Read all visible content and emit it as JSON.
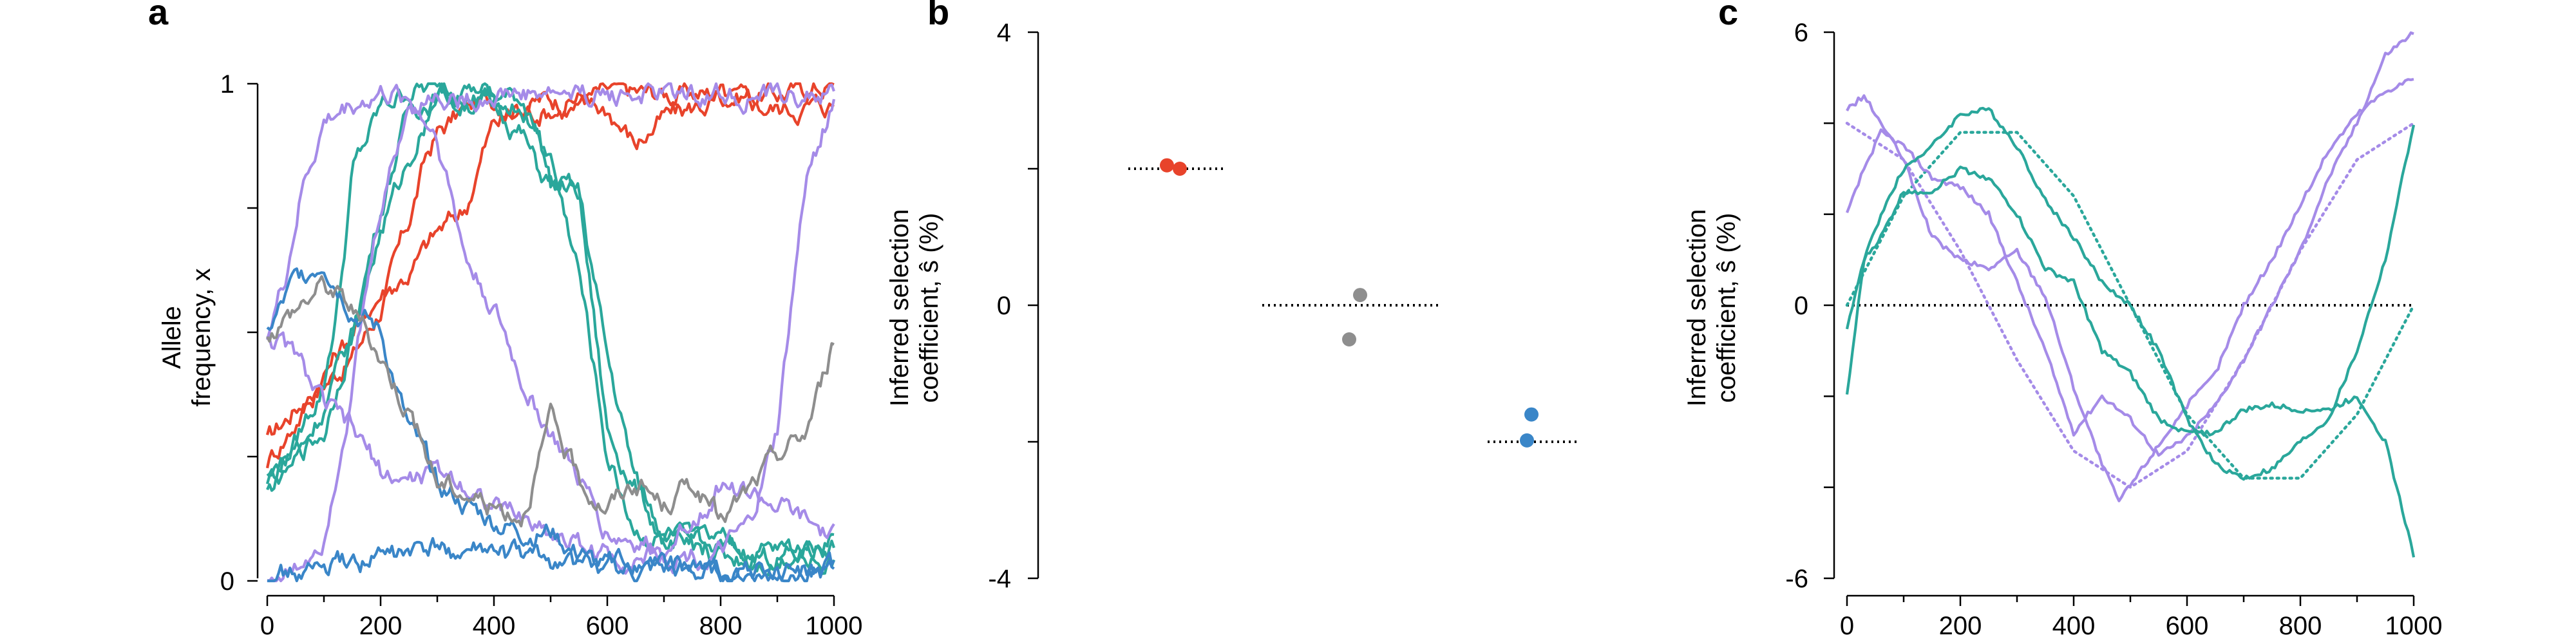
{
  "colors": {
    "red": "#e8432b",
    "teal": "#2aa79b",
    "purple": "#a58be8",
    "blue": "#3a86c8",
    "gray": "#8e8e8e",
    "axis": "#000000"
  },
  "chart_data": [
    {
      "panel": "a",
      "type": "line",
      "ylabel": [
        "Allele",
        "frequency, x"
      ],
      "xlim": [
        0,
        1000
      ],
      "ylim": [
        0,
        1
      ],
      "xticks": [
        "0",
        "200",
        "400",
        "600",
        "800",
        "1000"
      ],
      "yticks": [
        "0",
        "1"
      ],
      "series": [
        {
          "color": "red",
          "x": [
            0,
            50,
            100,
            150,
            200,
            250,
            280,
            300,
            350,
            400,
            450,
            500,
            600,
            700,
            800,
            900,
            1000
          ],
          "y": [
            0.28,
            0.35,
            0.4,
            0.45,
            0.55,
            0.72,
            0.85,
            0.9,
            0.95,
            0.97,
            0.96,
            0.97,
            0.98,
            0.98,
            0.98,
            0.98,
            1.0
          ]
        },
        {
          "color": "red",
          "x": [
            0,
            50,
            100,
            150,
            200,
            250,
            300,
            350,
            380,
            400,
            450,
            500,
            600,
            650,
            700,
            800,
            900,
            1000
          ],
          "y": [
            0.24,
            0.32,
            0.42,
            0.5,
            0.58,
            0.62,
            0.7,
            0.75,
            0.86,
            0.92,
            0.94,
            0.95,
            0.95,
            0.88,
            0.93,
            0.97,
            0.95,
            0.96
          ]
        },
        {
          "color": "teal",
          "x": [
            0,
            50,
            100,
            130,
            150,
            200,
            250,
            300,
            350,
            400,
            450,
            480,
            500,
            550,
            600,
            700,
            800,
            900,
            1000
          ],
          "y": [
            0.2,
            0.28,
            0.4,
            0.6,
            0.82,
            0.95,
            0.99,
            0.99,
            0.98,
            0.97,
            0.97,
            0.9,
            0.8,
            0.78,
            0.3,
            0.08,
            0.06,
            0.05,
            0.04
          ]
        },
        {
          "color": "teal",
          "x": [
            0,
            50,
            100,
            150,
            200,
            250,
            300,
            350,
            400,
            450,
            480,
            500,
            550,
            600,
            650,
            700,
            800,
            900,
            1000
          ],
          "y": [
            0.18,
            0.25,
            0.35,
            0.5,
            0.75,
            0.95,
            0.98,
            0.97,
            0.96,
            0.9,
            0.82,
            0.8,
            0.78,
            0.45,
            0.2,
            0.1,
            0.07,
            0.06,
            0.08
          ]
        },
        {
          "color": "teal",
          "x": [
            0,
            100,
            200,
            300,
            400,
            450,
            500,
            550,
            600,
            650,
            700,
            800,
            900,
            1000
          ],
          "y": [
            0.2,
            0.3,
            0.7,
            0.99,
            0.97,
            0.95,
            0.85,
            0.62,
            0.25,
            0.1,
            0.08,
            0.05,
            0.04,
            0.1
          ]
        },
        {
          "color": "purple",
          "x": [
            0,
            30,
            60,
            100,
            150,
            200,
            250,
            300,
            350,
            400,
            450,
            500,
            550,
            600,
            700,
            800,
            850,
            900,
            950,
            1000
          ],
          "y": [
            0.5,
            0.6,
            0.78,
            0.92,
            0.96,
            0.98,
            0.97,
            0.9,
            0.65,
            0.55,
            0.4,
            0.3,
            0.2,
            0.1,
            0.06,
            0.05,
            0.1,
            0.3,
            0.8,
            0.97
          ]
        },
        {
          "color": "purple",
          "x": [
            0,
            50,
            100,
            150,
            200,
            250,
            300,
            350,
            400,
            500,
            600,
            700,
            800,
            900,
            1000
          ],
          "y": [
            0.5,
            0.45,
            0.35,
            0.3,
            0.22,
            0.2,
            0.22,
            0.2,
            0.15,
            0.1,
            0.05,
            0.05,
            0.2,
            0.15,
            0.08
          ]
        },
        {
          "color": "purple",
          "x": [
            0,
            50,
            100,
            150,
            200,
            250,
            300,
            350,
            400,
            500,
            600,
            700,
            800,
            900,
            1000
          ],
          "y": [
            0.0,
            0.02,
            0.1,
            0.4,
            0.75,
            0.96,
            0.98,
            0.97,
            0.98,
            0.98,
            0.98,
            0.98,
            0.98,
            0.97,
            0.98
          ]
        },
        {
          "color": "blue",
          "x": [
            0,
            50,
            100,
            150,
            200,
            250,
            300,
            350,
            400,
            450,
            500,
            550,
            600,
            700,
            800,
            900,
            1000
          ],
          "y": [
            0.5,
            0.6,
            0.65,
            0.55,
            0.5,
            0.3,
            0.2,
            0.15,
            0.12,
            0.1,
            0.1,
            0.05,
            0.02,
            0.02,
            0.01,
            0.02,
            0.01
          ]
        },
        {
          "color": "blue",
          "x": [
            0,
            100,
            200,
            300,
            400,
            500,
            600,
            700,
            800,
            900,
            1000
          ],
          "y": [
            0.01,
            0.02,
            0.05,
            0.06,
            0.05,
            0.04,
            0.03,
            0.03,
            0.02,
            0.02,
            0.02
          ]
        },
        {
          "color": "gray",
          "x": [
            0,
            50,
            100,
            150,
            200,
            250,
            300,
            350,
            400,
            450,
            500,
            550,
            600,
            650,
            700,
            750,
            800,
            850,
            900,
            950,
            1000
          ],
          "y": [
            0.5,
            0.55,
            0.6,
            0.55,
            0.45,
            0.35,
            0.2,
            0.18,
            0.15,
            0.14,
            0.32,
            0.2,
            0.15,
            0.2,
            0.15,
            0.2,
            0.12,
            0.18,
            0.25,
            0.3,
            0.48
          ]
        }
      ]
    },
    {
      "panel": "b",
      "type": "scatter",
      "ylabel": [
        "Inferred selection",
        "coefficient, ŝ (%)"
      ],
      "ylim": [
        -4,
        4
      ],
      "yticks": [
        "-4",
        "0",
        "4"
      ],
      "groups": [
        {
          "color": "red",
          "true_value": 2.0,
          "inferred": [
            2.05,
            2.0
          ]
        },
        {
          "color": "gray",
          "true_value": 0.0,
          "inferred": [
            0.15,
            -0.5
          ]
        },
        {
          "color": "blue",
          "true_value": -2.0,
          "inferred": [
            -1.6,
            -1.98
          ]
        }
      ]
    },
    {
      "panel": "c",
      "type": "line",
      "ylabel": [
        "Inferred selection",
        "coefficient, ŝ (%)"
      ],
      "xlim": [
        0,
        1000
      ],
      "ylim": [
        -6,
        6
      ],
      "xticks": [
        "0",
        "200",
        "400",
        "600",
        "800",
        "1000"
      ],
      "yticks": [
        "-6",
        "0",
        "6"
      ],
      "series": [
        {
          "color": "purple",
          "style": "dotted",
          "x": [
            0,
            100,
            200,
            300,
            400,
            500,
            600,
            700,
            800,
            900,
            1000
          ],
          "y": [
            4.0,
            3.2,
            1.2,
            -1.2,
            -3.2,
            -4.0,
            -3.2,
            -1.2,
            1.2,
            3.2,
            4.0
          ]
        },
        {
          "color": "teal",
          "style": "dotted",
          "x": [
            0,
            100,
            200,
            300,
            400,
            500,
            600,
            700,
            800,
            900,
            1000
          ],
          "y": [
            0.0,
            2.4,
            3.8,
            3.8,
            2.4,
            0.0,
            -2.4,
            -3.8,
            -3.8,
            -2.4,
            0.0
          ]
        },
        {
          "color": "purple",
          "style": "solid",
          "x": [
            0,
            30,
            60,
            100,
            150,
            200,
            250,
            300,
            350,
            400,
            450,
            480,
            520,
            600,
            650,
            700,
            750,
            800,
            850,
            900,
            950,
            1000
          ],
          "y": [
            4.3,
            4.6,
            4.0,
            3.2,
            1.5,
            1.0,
            0.8,
            1.2,
            0.2,
            -1.8,
            -3.5,
            -4.3,
            -3.6,
            -2.2,
            -1.5,
            0.0,
            1.0,
            2.2,
            3.4,
            4.2,
            4.7,
            5.0
          ]
        },
        {
          "color": "purple",
          "style": "solid",
          "x": [
            0,
            30,
            60,
            100,
            150,
            200,
            250,
            300,
            350,
            400,
            450,
            500,
            550,
            600,
            650,
            700,
            750,
            800,
            850,
            900,
            950,
            1000
          ],
          "y": [
            2.0,
            3.0,
            3.8,
            3.5,
            2.8,
            2.6,
            2.0,
            0.5,
            -1.0,
            -2.8,
            -2.0,
            -2.5,
            -3.3,
            -2.9,
            -2.2,
            -1.2,
            0.0,
            1.2,
            2.8,
            4.0,
            5.5,
            6.0
          ]
        },
        {
          "color": "teal",
          "style": "solid",
          "x": [
            0,
            30,
            60,
            100,
            150,
            200,
            250,
            300,
            350,
            400,
            450,
            500,
            550,
            600,
            650,
            700,
            750,
            800,
            850,
            900,
            950,
            1000
          ],
          "y": [
            -0.5,
            1.0,
            2.0,
            3.0,
            3.5,
            4.2,
            4.3,
            3.5,
            2.3,
            1.5,
            0.5,
            0.0,
            -1.0,
            -2.5,
            -3.5,
            -3.8,
            -3.6,
            -3.0,
            -2.5,
            -1.0,
            1.0,
            4.0
          ]
        },
        {
          "color": "teal",
          "style": "solid",
          "x": [
            0,
            30,
            60,
            100,
            150,
            200,
            250,
            300,
            350,
            400,
            450,
            500,
            550,
            600,
            650,
            700,
            750,
            800,
            850,
            900,
            950,
            1000
          ],
          "y": [
            -2.0,
            1.0,
            1.5,
            2.5,
            2.5,
            3.0,
            2.8,
            2.0,
            0.8,
            0.5,
            -1.0,
            -1.5,
            -2.5,
            -2.8,
            -2.8,
            -2.3,
            -2.2,
            -2.3,
            -2.3,
            -2.0,
            -3.0,
            -5.5
          ]
        }
      ]
    }
  ],
  "labels": {
    "panel_a": "a",
    "panel_b": "b",
    "panel_c": "c"
  }
}
